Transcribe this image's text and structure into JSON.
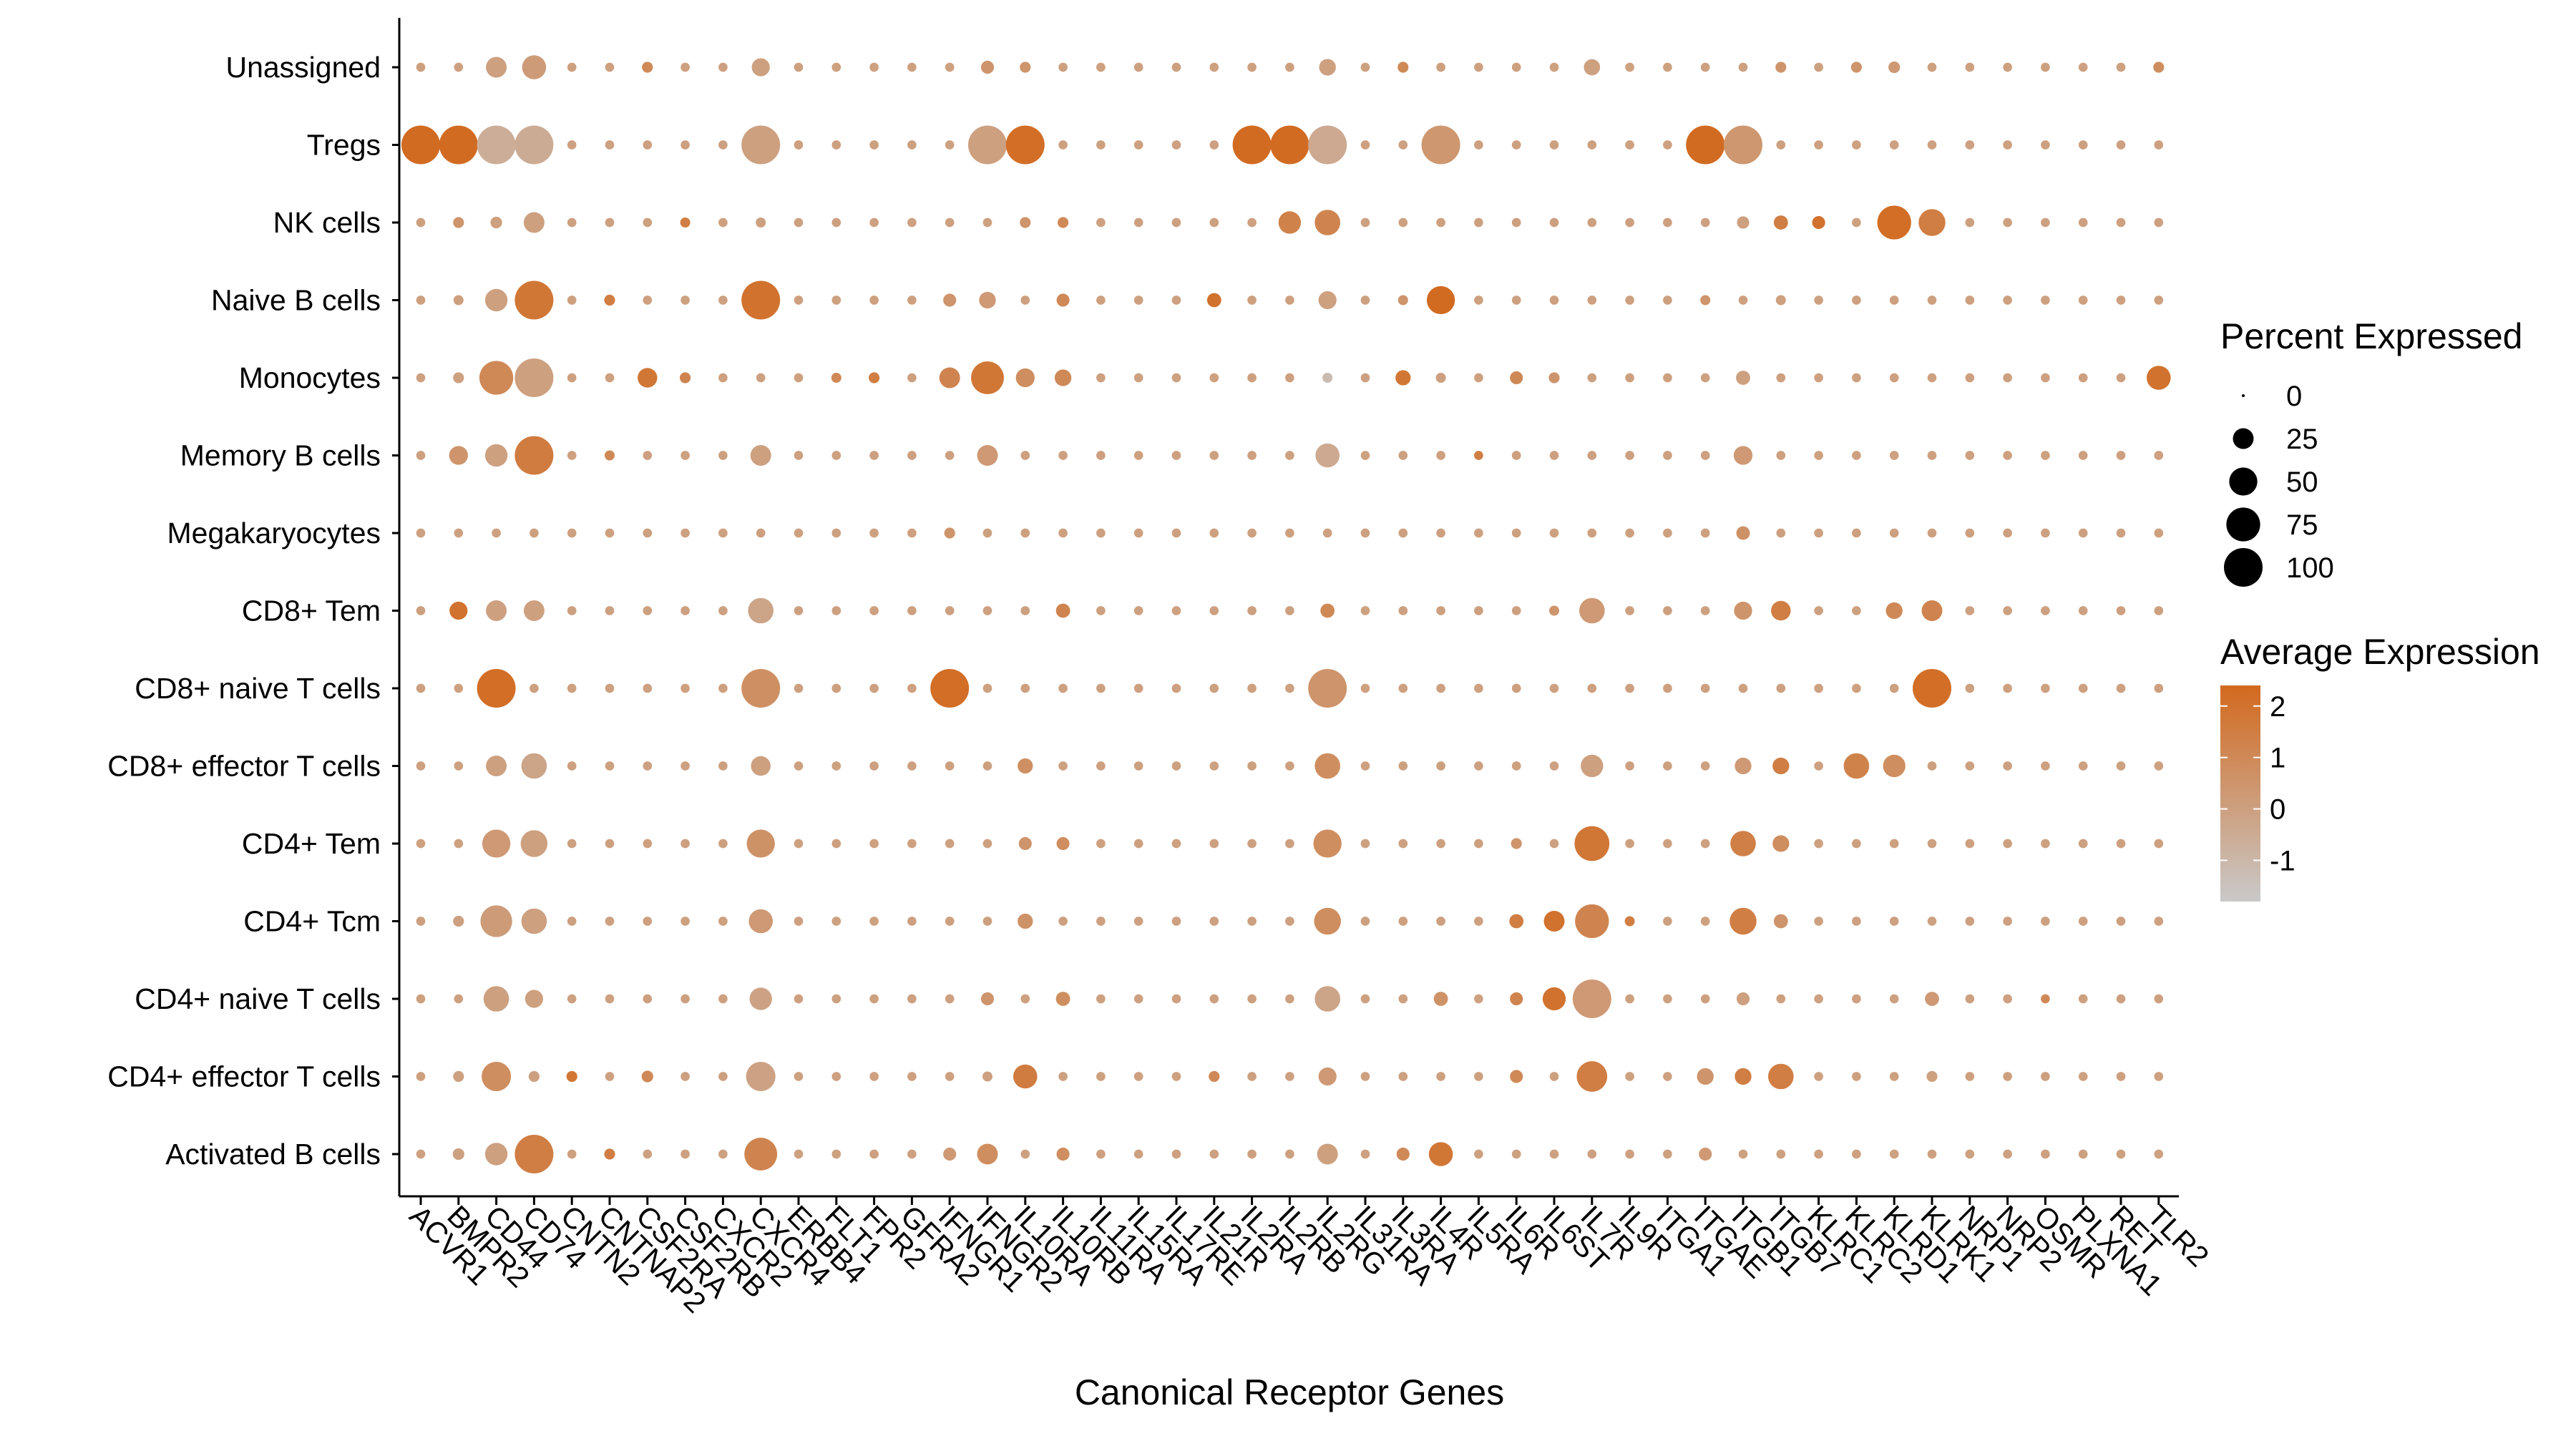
{
  "chart_data": {
    "type": "dot",
    "xlabel": "Canonical Receptor Genes",
    "ylabel": "",
    "genes": [
      "ACVR1",
      "BMPR2",
      "CD44",
      "CD74",
      "CNTN2",
      "CNTNAP2",
      "CSF2RA",
      "CSF2RB",
      "CXCR2",
      "CXCR4",
      "ERBB4",
      "FLT1",
      "FPR2",
      "GFRA2",
      "IFNGR1",
      "IFNGR2",
      "IL10RA",
      "IL10RB",
      "IL11RA",
      "IL15RA",
      "IL17RE",
      "IL21R",
      "IL2RA",
      "IL2RB",
      "IL2RG",
      "IL31RA",
      "IL3RA",
      "IL4R",
      "IL5RA",
      "IL6R",
      "IL6ST",
      "IL7R",
      "IL9R",
      "ITGA1",
      "ITGAE",
      "ITGB1",
      "ITGB7",
      "KLRC1",
      "KLRC2",
      "KLRD1",
      "KLRK1",
      "NRP1",
      "NRP2",
      "OSMR",
      "PLXNA1",
      "RET",
      "TLR2"
    ],
    "cell_types": [
      "Unassigned",
      "Tregs",
      "NK cells",
      "Naive B cells",
      "Monocytes",
      "Memory B cells",
      "Megakaryocytes",
      "CD8+ Tem",
      "CD8+ naive T cells",
      "CD8+ effector T cells",
      "CD4+ Tem",
      "CD4+ Tcm",
      "CD4+ naive T cells",
      "CD4+ effector T cells",
      "Activated B cells"
    ],
    "default_point": {
      "pct": 3,
      "avg": 0
    },
    "points": {
      "Unassigned": {
        "CD44": [
          25,
          0
        ],
        "CD74": [
          35,
          0.2
        ],
        "CXCR4": [
          18,
          0
        ],
        "IFNGR2": [
          8,
          0.5
        ],
        "IL10RA": [
          5,
          0.5
        ],
        "IL2RG": [
          15,
          0
        ],
        "IL3RA": [
          5,
          1
        ],
        "IL7R": [
          14,
          0
        ],
        "ITGB7": [
          5,
          0.5
        ],
        "KLRC2": [
          5,
          0.5
        ],
        "KLRD1": [
          6,
          0.3
        ],
        "TLR2": [
          5,
          0.8
        ],
        "CSF2RA": [
          5,
          1
        ]
      },
      "Tregs": {
        "ACVR1": [
          100,
          2.3
        ],
        "BMPR2": [
          100,
          2.3
        ],
        "CD44": [
          100,
          -0.6
        ],
        "CD74": [
          100,
          -0.5
        ],
        "CXCR4": [
          100,
          0
        ],
        "IFNGR2": [
          100,
          0
        ],
        "IL10RA": [
          100,
          2.2
        ],
        "IL2RA": [
          100,
          2.3
        ],
        "IL2RB": [
          100,
          2.3
        ],
        "IL2RG": [
          100,
          -0.4
        ],
        "IL4R": [
          100,
          0.4
        ],
        "ITGAE": [
          100,
          2.3
        ],
        "ITGB1": [
          100,
          0.4
        ]
      },
      "NK cells": {
        "BMPR2": [
          5,
          0.5
        ],
        "CD44": [
          6,
          0
        ],
        "CD74": [
          25,
          0
        ],
        "CSF2RB": [
          4,
          1.5
        ],
        "CXCR4": [
          4,
          0
        ],
        "IL10RA": [
          5,
          0.5
        ],
        "IL10RB": [
          5,
          1
        ],
        "IL2RB": [
          30,
          1.3
        ],
        "IL2RG": [
          40,
          1.2
        ],
        "ITGB1": [
          7,
          0
        ],
        "ITGB7": [
          10,
          1.5
        ],
        "KLRC1": [
          8,
          2
        ],
        "KLRD1": [
          75,
          2.2
        ],
        "KLRK1": [
          45,
          1.5
        ]
      },
      "Naive B cells": {
        "BMPR2": [
          4,
          0
        ],
        "CD44": [
          30,
          0
        ],
        "CD74": [
          100,
          1.8
        ],
        "CNTNAP2": [
          5,
          1.5
        ],
        "CXCR4": [
          100,
          2
        ],
        "IFNGR1": [
          8,
          0.5
        ],
        "IFNGR2": [
          15,
          0.3
        ],
        "IL10RB": [
          8,
          1
        ],
        "IL21R": [
          10,
          2
        ],
        "IL2RG": [
          18,
          0
        ],
        "IL3RA": [
          4,
          0.5
        ],
        "IL4R": [
          50,
          2.3
        ],
        "ITGAE": [
          4,
          0.5
        ],
        "ITGB7": [
          4,
          0
        ]
      },
      "Monocytes": {
        "BMPR2": [
          5,
          0
        ],
        "CD44": [
          75,
          1.0
        ],
        "CD74": [
          100,
          0
        ],
        "CSF2RA": [
          22,
          1.8
        ],
        "CSF2RB": [
          5,
          1.2
        ],
        "FLT1": [
          4,
          1
        ],
        "FPR2": [
          5,
          1.5
        ],
        "IFNGR1": [
          25,
          1.2
        ],
        "IFNGR2": [
          70,
          1.8
        ],
        "IL10RA": [
          20,
          0.8
        ],
        "IL10RB": [
          15,
          1
        ],
        "IL2RG": [
          4,
          -1.2
        ],
        "IL3RA": [
          12,
          1.8
        ],
        "IL4R": [
          4,
          0
        ],
        "IL6R": [
          8,
          1
        ],
        "IL6ST": [
          5,
          0.5
        ],
        "ITGB1": [
          10,
          0
        ],
        "TLR2": [
          35,
          2
        ]
      },
      "Memory B cells": {
        "BMPR2": [
          20,
          0.5
        ],
        "CD44": [
          30,
          0
        ],
        "CD74": [
          100,
          1.6
        ],
        "CNTNAP2": [
          4,
          1
        ],
        "CXCR4": [
          25,
          0
        ],
        "IFNGR2": [
          25,
          0.3
        ],
        "IL2RG": [
          35,
          -0.4
        ],
        "ITGB1": [
          20,
          0.3
        ],
        "IL5RA": [
          3,
          1.5
        ]
      },
      "Megakaryocytes": {
        "ITGB1": [
          9,
          0.6
        ],
        "IFNGR1": [
          5,
          0.5
        ]
      },
      "CD8+ Tem": {
        "BMPR2": [
          18,
          2
        ],
        "CD44": [
          25,
          0
        ],
        "CD74": [
          25,
          0
        ],
        "CXCR4": [
          40,
          -0.2
        ],
        "IL10RB": [
          10,
          1.2
        ],
        "IL2RG": [
          10,
          1
        ],
        "IL7R": [
          40,
          0.3
        ],
        "IL6ST": [
          4,
          0.5
        ],
        "ITGB1": [
          18,
          0.5
        ],
        "ITGB7": [
          22,
          1.5
        ],
        "KLRD1": [
          15,
          1
        ],
        "KLRK1": [
          25,
          1.2
        ]
      },
      "CD8+ naive T cells": {
        "CD44": [
          100,
          2.2
        ],
        "CXCR4": [
          100,
          0.7
        ],
        "IFNGR1": [
          100,
          2.2
        ],
        "IL2RG": [
          100,
          0.5
        ],
        "KLRK1": [
          100,
          2.2
        ]
      },
      "CD8+ effector T cells": {
        "CD44": [
          25,
          0
        ],
        "CD74": [
          40,
          -0.2
        ],
        "CXCR4": [
          22,
          0
        ],
        "IL10RA": [
          12,
          0.7
        ],
        "IL2RG": [
          40,
          0.8
        ],
        "IL7R": [
          30,
          0
        ],
        "ITGB1": [
          15,
          0.3
        ],
        "ITGB7": [
          15,
          1.5
        ],
        "KLRC2": [
          40,
          1.3
        ],
        "KLRD1": [
          30,
          0.8
        ]
      },
      "CD4+ Tem": {
        "CD44": [
          50,
          0.3
        ],
        "CD74": [
          45,
          0
        ],
        "CXCR4": [
          50,
          0.6
        ],
        "IL10RA": [
          8,
          0.5
        ],
        "IL10RB": [
          8,
          0.8
        ],
        "IL2RG": [
          50,
          0.8
        ],
        "IL7R": [
          80,
          1.8
        ],
        "ITGB1": [
          40,
          1.4
        ],
        "ITGB7": [
          15,
          0.8
        ],
        "IL6R": [
          5,
          0.5
        ]
      },
      "CD4+ Tcm": {
        "BMPR2": [
          5,
          0
        ],
        "CD44": [
          65,
          0.2
        ],
        "CD74": [
          40,
          0
        ],
        "CXCR4": [
          35,
          0.3
        ],
        "IL10RA": [
          12,
          0.6
        ],
        "IL2RG": [
          45,
          0.8
        ],
        "IL6R": [
          10,
          1.5
        ],
        "IL6ST": [
          25,
          2
        ],
        "IL7R": [
          75,
          1.2
        ],
        "IL9R": [
          4,
          1.5
        ],
        "ITGB1": [
          45,
          1.5
        ],
        "ITGB7": [
          10,
          0.5
        ]
      },
      "CD4+ naive T cells": {
        "CD44": [
          40,
          0
        ],
        "CD74": [
          18,
          0
        ],
        "CXCR4": [
          30,
          -0.1
        ],
        "IFNGR2": [
          8,
          0.5
        ],
        "IL10RB": [
          10,
          0.8
        ],
        "IL2RG": [
          40,
          -0.2
        ],
        "IL4R": [
          10,
          0.6
        ],
        "IL6R": [
          8,
          1.2
        ],
        "IL6ST": [
          32,
          2
        ],
        "IL7R": [
          100,
          0.3
        ],
        "ITGB1": [
          8,
          0
        ],
        "KLRK1": [
          10,
          0.3
        ],
        "OSMR": [
          3,
          1
        ]
      },
      "CD4+ effector T cells": {
        "BMPR2": [
          5,
          0
        ],
        "CD44": [
          55,
          0.8
        ],
        "CD74": [
          5,
          0
        ],
        "CNTN2": [
          5,
          1.8
        ],
        "CSF2RA": [
          6,
          1
        ],
        "CXCR4": [
          55,
          -0.1
        ],
        "IFNGR2": [
          4,
          0
        ],
        "IL10RA": [
          35,
          1.6
        ],
        "IL2RG": [
          18,
          0.3
        ],
        "IL6R": [
          8,
          1
        ],
        "IL7R": [
          60,
          1.5
        ],
        "ITGAE": [
          15,
          0.5
        ],
        "ITGB1": [
          15,
          1.5
        ],
        "ITGB7": [
          40,
          1.5
        ],
        "IL21R": [
          5,
          1
        ],
        "KLRK1": [
          5,
          0
        ]
      },
      "Activated B cells": {
        "BMPR2": [
          6,
          0
        ],
        "CD44": [
          30,
          0
        ],
        "CD74": [
          100,
          1.5
        ],
        "CNTNAP2": [
          5,
          1.5
        ],
        "CXCR4": [
          70,
          1.2
        ],
        "IFNGR1": [
          8,
          0.3
        ],
        "IFNGR2": [
          25,
          0.8
        ],
        "IL10RB": [
          8,
          0.8
        ],
        "IL2RG": [
          25,
          0
        ],
        "IL3RA": [
          8,
          1
        ],
        "IL4R": [
          35,
          1.8
        ],
        "ITGAE": [
          8,
          0.3
        ]
      }
    },
    "size_legend": {
      "title": "Percent Expressed",
      "values": [
        0,
        25,
        50,
        75,
        100
      ],
      "labels": [
        "0",
        "25",
        "50",
        "75",
        "100"
      ]
    },
    "color_legend": {
      "title": "Average Expression",
      "ticks": [
        2,
        1,
        0,
        -1
      ],
      "labels": [
        "2",
        "1",
        "0",
        "-1"
      ],
      "range": [
        -1.8,
        2.4
      ]
    },
    "colors": {
      "low": "#c9c9c9",
      "high": "#d2691e",
      "axis": "#000000"
    }
  }
}
